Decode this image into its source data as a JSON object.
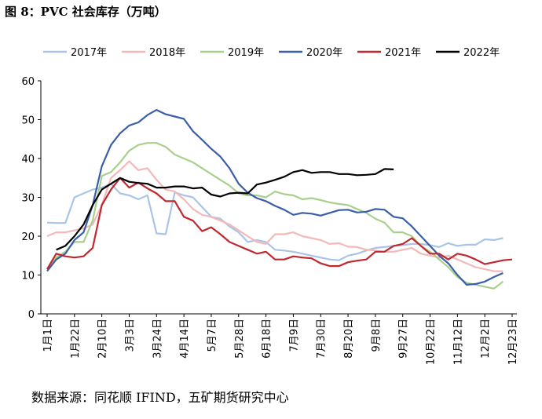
{
  "chart_data": {
    "type": "line",
    "title": "图 8：PVC 社会库存（万吨）",
    "source": "数据来源：同花顺 IFIND，五矿期货研究中心",
    "categories": [
      "1月1日",
      null,
      null,
      "1月22日",
      null,
      null,
      "2月10日",
      null,
      null,
      "3月3日",
      null,
      null,
      "3月24日",
      null,
      null,
      "4月14日",
      null,
      null,
      "5月7日",
      null,
      null,
      "5月28日",
      null,
      null,
      "6月18日",
      null,
      null,
      "7月9日",
      null,
      null,
      "7月30日",
      null,
      null,
      "8月20日",
      null,
      null,
      "9月8日",
      null,
      null,
      "9月27日",
      null,
      null,
      "10月22日",
      null,
      null,
      "11月12日",
      null,
      null,
      "12月2日",
      null,
      null,
      "12月23日"
    ],
    "ylim": [
      0,
      60
    ],
    "yticks": [
      0,
      10,
      20,
      30,
      40,
      50,
      60
    ],
    "grid": false,
    "legend": "top",
    "series": [
      {
        "name": "2017年",
        "color": "#a9c4e8",
        "values": [
          23.5,
          23.4,
          23.4,
          30,
          31,
          32,
          32.5,
          33.5,
          31,
          30.5,
          29.5,
          30.5,
          20.7,
          20.5,
          31.3,
          30.5,
          30,
          27.5,
          25,
          24.5,
          22.5,
          21,
          18.5,
          19,
          18.5,
          16.5,
          16.3,
          16,
          15.5,
          15,
          14.5,
          14,
          13.8,
          15,
          15.5,
          16.3,
          17,
          17.2,
          17.5,
          17.7,
          18,
          18,
          17.7,
          17.2,
          18.2,
          17.5,
          17.8,
          17.8,
          19.2,
          19,
          19.5,
          null
        ]
      },
      {
        "name": "2018年",
        "color": "#f4b8b8",
        "values": [
          20,
          21,
          21,
          21.5,
          22,
          23,
          28,
          35,
          37,
          39.3,
          37,
          37.5,
          34.5,
          32,
          31.5,
          29.5,
          27,
          25.5,
          25,
          24,
          23,
          21.5,
          20,
          18.5,
          18,
          20.5,
          20.5,
          21,
          20,
          19.5,
          19,
          18,
          18.2,
          17.3,
          17.2,
          16.5,
          16.3,
          16,
          16,
          16.5,
          17,
          15.5,
          15,
          14.5,
          15,
          14,
          13,
          12,
          11.5,
          11,
          11,
          null
        ]
      },
      {
        "name": "2019年",
        "color": "#a8d08d",
        "values": [
          11.5,
          14.5,
          16,
          18.5,
          18.5,
          24,
          35.5,
          36.5,
          39,
          42,
          43.5,
          44,
          44,
          43,
          41,
          40,
          39,
          37.5,
          36,
          34.5,
          33,
          31,
          30.5,
          30.5,
          30,
          31.5,
          30.8,
          30.5,
          29.5,
          29.8,
          29.3,
          28.7,
          28.3,
          28,
          27,
          26,
          24.5,
          23.5,
          21,
          21,
          20,
          17.5,
          16,
          14,
          12,
          9.5,
          8,
          7.5,
          7,
          6.5,
          8.3,
          null
        ]
      },
      {
        "name": "2020年",
        "color": "#3a5ea8",
        "values": [
          11,
          14,
          15.5,
          19,
          21,
          28,
          38,
          43.5,
          46.5,
          48.5,
          49.3,
          51.2,
          52.5,
          51.4,
          50.8,
          50.2,
          47,
          44.8,
          42.5,
          40.5,
          37.5,
          33.5,
          31.2,
          29.8,
          29,
          27.8,
          26.8,
          25.5,
          26,
          25.8,
          25.3,
          26,
          26.7,
          26.8,
          26.1,
          26.3,
          27,
          26.8,
          25,
          24.6,
          22.5,
          20,
          17.5,
          15,
          13,
          10,
          7.5,
          7.7,
          8.3,
          9.5,
          10.5,
          null
        ]
      },
      {
        "name": "2021年",
        "color": "#c0282e",
        "values": [
          11.5,
          15.5,
          14.8,
          14.5,
          14.8,
          17,
          28,
          32,
          35,
          32.5,
          33.8,
          32.3,
          31,
          29,
          29,
          25,
          24,
          21.3,
          22.3,
          20.5,
          18.5,
          17.5,
          16.5,
          15.5,
          16,
          14,
          14,
          14.8,
          14.5,
          14.3,
          13,
          12.3,
          12.3,
          13.3,
          13.7,
          14,
          16,
          16,
          17.5,
          18,
          19.5,
          17.5,
          15.5,
          15.5,
          14,
          15.5,
          15,
          14,
          12.8,
          13.3,
          13.8,
          14
        ]
      },
      {
        "name": "2022年",
        "color": "#000000",
        "values": [
          null,
          16.5,
          17.5,
          20,
          23,
          28,
          32,
          33.5,
          35,
          34,
          33.7,
          33.5,
          32.5,
          32.5,
          32.8,
          32.8,
          32.3,
          32.5,
          30.7,
          30.2,
          31,
          31.2,
          31,
          33.3,
          33.8,
          34.5,
          35.3,
          36.5,
          37,
          36.3,
          36.5,
          36.5,
          36,
          36,
          35.7,
          35.8,
          36,
          37.3,
          37.2,
          null,
          null,
          null,
          null,
          null,
          null,
          null,
          null,
          null,
          null,
          null,
          null,
          null
        ]
      }
    ]
  }
}
